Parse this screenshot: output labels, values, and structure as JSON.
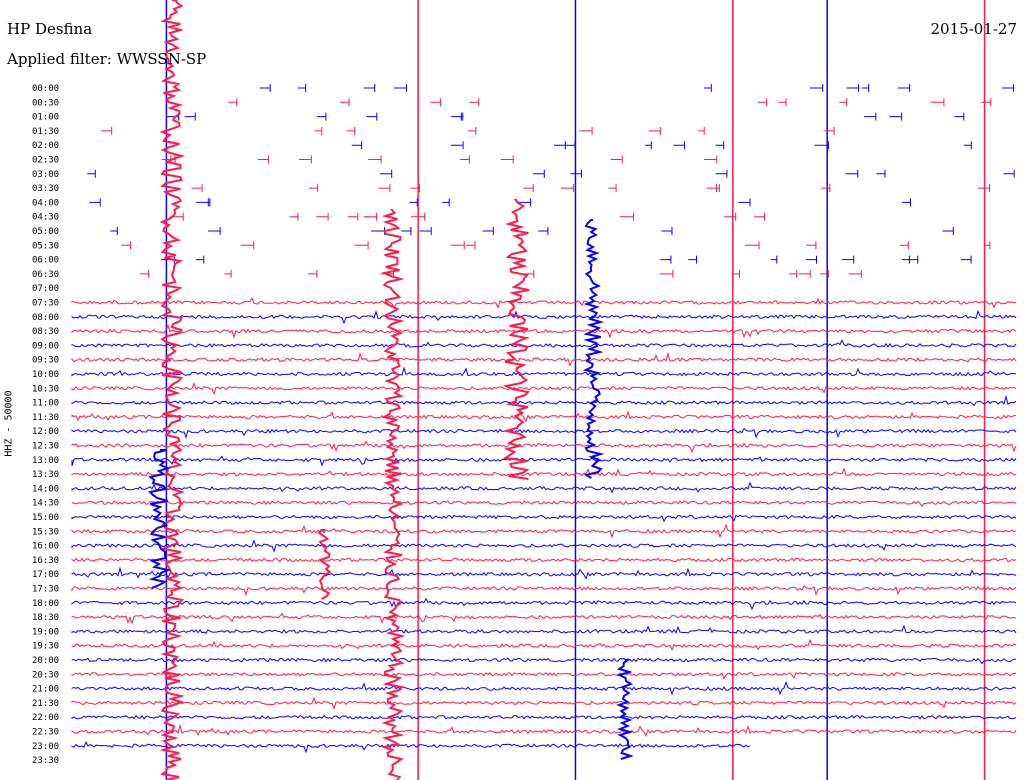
{
  "header": {
    "station": "HP Desfina",
    "filter": "Applied filter: WWSSN-SP",
    "date": "2015-01-27"
  },
  "axis": {
    "ylabel": "HHZ - 50000"
  },
  "colors": {
    "trace_a": "#ff1a4b",
    "trace_b": "#0a00ff",
    "background": "#ffffff"
  },
  "chart_data": {
    "type": "line",
    "title": "HP Desfina",
    "ylabel": "HHZ - 50000",
    "row_labels": [
      "00:00",
      "00:30",
      "01:00",
      "01:30",
      "02:00",
      "02:30",
      "03:00",
      "03:30",
      "04:00",
      "04:30",
      "05:00",
      "05:30",
      "06:00",
      "06:30",
      "07:00",
      "07:30",
      "08:00",
      "08:30",
      "09:00",
      "09:30",
      "10:00",
      "10:30",
      "11:00",
      "11:30",
      "12:00",
      "12:30",
      "13:00",
      "13:30",
      "14:00",
      "14:30",
      "15:00",
      "15:30",
      "16:00",
      "16:30",
      "17:00",
      "17:30",
      "18:00",
      "18:30",
      "19:00",
      "19:30",
      "20:00",
      "20:30",
      "21:00",
      "21:30",
      "22:00",
      "22:30",
      "23:00",
      "23:30"
    ],
    "row_colors": [
      "trace_b",
      "trace_a",
      "trace_b",
      "trace_a",
      "trace_b",
      "trace_a",
      "trace_b",
      "trace_a",
      "trace_b",
      "trace_a",
      "trace_b",
      "trace_a",
      "trace_b",
      "trace_a",
      "trace_b",
      "trace_a",
      "trace_b",
      "trace_a",
      "trace_b",
      "trace_a",
      "trace_b",
      "trace_a",
      "trace_b",
      "trace_a",
      "trace_b",
      "trace_a",
      "trace_b",
      "trace_a",
      "trace_b",
      "trace_a",
      "trace_b",
      "trace_a",
      "trace_b",
      "trace_a",
      "trace_b",
      "trace_a",
      "trace_b",
      "trace_a",
      "trace_b",
      "trace_a",
      "trace_b",
      "trace_a",
      "trace_b",
      "trace_a",
      "trace_b",
      "trace_a",
      "trace_b",
      "trace_a"
    ],
    "trace_mode": [
      "pulses",
      "pulses",
      "pulses",
      "pulses",
      "pulses",
      "pulses",
      "pulses",
      "pulses",
      "pulses",
      "pulses",
      "pulses",
      "pulses",
      "pulses",
      "pulses",
      "empty",
      "noise",
      "noise",
      "noise",
      "noise",
      "noise",
      "noise",
      "noise",
      "noise",
      "noise",
      "noise",
      "noise",
      "noise",
      "noise",
      "noise",
      "noise",
      "noise",
      "noise",
      "noise",
      "noise",
      "noise",
      "noise",
      "noise",
      "noise",
      "noise",
      "noise",
      "noise",
      "noise",
      "noise",
      "noise",
      "noise",
      "noise",
      "partial",
      "empty"
    ],
    "row_minutes": 30,
    "data_end": "23:30",
    "minute_markers": [
      6,
      22,
      32,
      42,
      48,
      58
    ]
  }
}
